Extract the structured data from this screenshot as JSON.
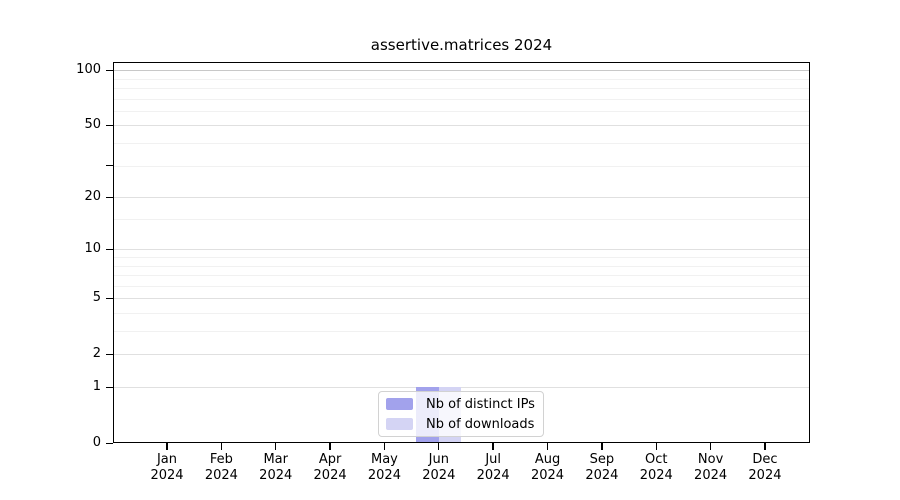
{
  "title": "assertive.matrices 2024",
  "colors": {
    "grid_top": "#c8c8c8",
    "grid_major": "#e0e0e0",
    "grid_minor": "#f1f1f1",
    "axis": "#000000",
    "legend_border": "#d2d2d2"
  },
  "legend": {
    "position": "bottom-center",
    "entries": [
      "Nb of distinct IPs",
      "Nb of downloads"
    ]
  },
  "chart_data": {
    "type": "bar",
    "title": "assertive.matrices 2024",
    "categories": [
      "Jan 2024",
      "Feb 2024",
      "Mar 2024",
      "Apr 2024",
      "May 2024",
      "Jun 2024",
      "Jul 2024",
      "Aug 2024",
      "Sep 2024",
      "Oct 2024",
      "Nov 2024",
      "Dec 2024"
    ],
    "series": [
      {
        "name": "Nb of distinct IPs",
        "color": "#a2a2ec",
        "values": [
          0,
          0,
          0,
          0,
          0,
          1,
          0,
          0,
          0,
          0,
          0,
          0
        ]
      },
      {
        "name": "Nb of downloads",
        "color": "#d4d4f4",
        "values": [
          0,
          0,
          0,
          0,
          0,
          1,
          0,
          0,
          0,
          0,
          0,
          0
        ]
      }
    ],
    "xlabel": "",
    "ylabel": "",
    "ylim": [
      0,
      110
    ],
    "y_scale": "log10(1+y)",
    "y_ticks_labeled": [
      0,
      1,
      2,
      5,
      10,
      20,
      50,
      100
    ],
    "y_ticks_unlabeled": [
      30
    ],
    "y_gridlines": [
      1,
      2,
      3,
      4,
      5,
      6,
      7,
      8,
      9,
      10,
      15,
      20,
      30,
      40,
      50,
      60,
      70,
      80,
      90,
      100
    ],
    "grid": "horizontal-only",
    "legend_position": "bottom-center"
  }
}
